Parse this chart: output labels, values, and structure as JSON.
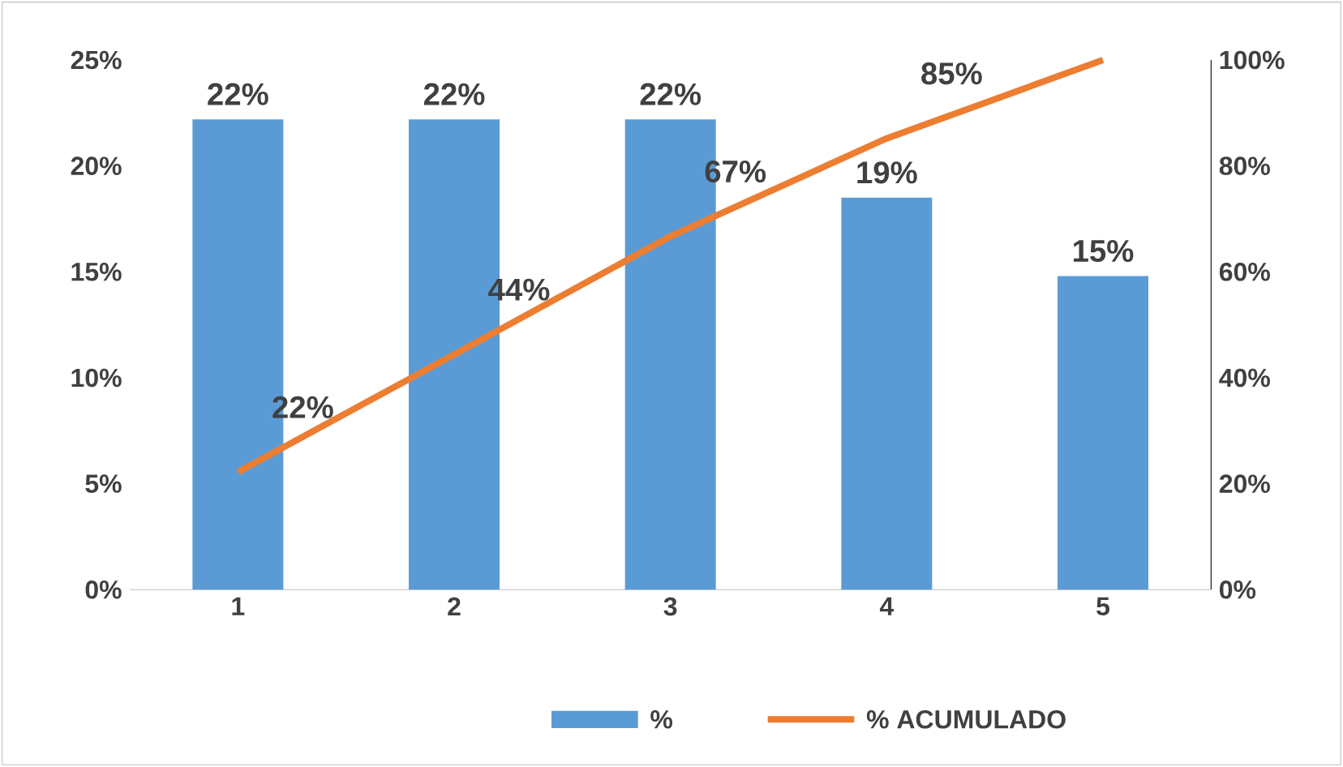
{
  "chart_data": {
    "type": "bar",
    "categories": [
      "1",
      "2",
      "3",
      "4",
      "5"
    ],
    "series": [
      {
        "name": "%",
        "color": "#5b9bd5",
        "values": [
          22.2,
          22.2,
          22.2,
          18.5,
          14.8
        ],
        "value_labels": [
          "22%",
          "22%",
          "22%",
          "19%",
          "15%"
        ]
      },
      {
        "name": "% ACUMULADO",
        "type": "line",
        "axis": "y2",
        "color": "#ed7d31",
        "values": [
          22.2,
          44.4,
          66.7,
          85.2,
          100
        ],
        "value_labels": [
          "22%",
          "44%",
          "67%",
          "85%",
          null
        ]
      }
    ],
    "ylim": [
      0,
      25
    ],
    "yticks": [
      {
        "value": 0,
        "label": "0%"
      },
      {
        "value": 5,
        "label": "5%"
      },
      {
        "value": 10,
        "label": "10%"
      },
      {
        "value": 15,
        "label": "15%"
      },
      {
        "value": 20,
        "label": "20%"
      },
      {
        "value": 25,
        "label": "25%"
      }
    ],
    "y2lim": [
      0,
      100
    ],
    "y2ticks": [
      {
        "value": 0,
        "label": "0%"
      },
      {
        "value": 20,
        "label": "20%"
      },
      {
        "value": 40,
        "label": "40%"
      },
      {
        "value": 60,
        "label": "60%"
      },
      {
        "value": 80,
        "label": "80%"
      },
      {
        "value": 100,
        "label": "100%"
      }
    ],
    "legend": "bottom",
    "marker": "none",
    "line_style": "solid"
  }
}
